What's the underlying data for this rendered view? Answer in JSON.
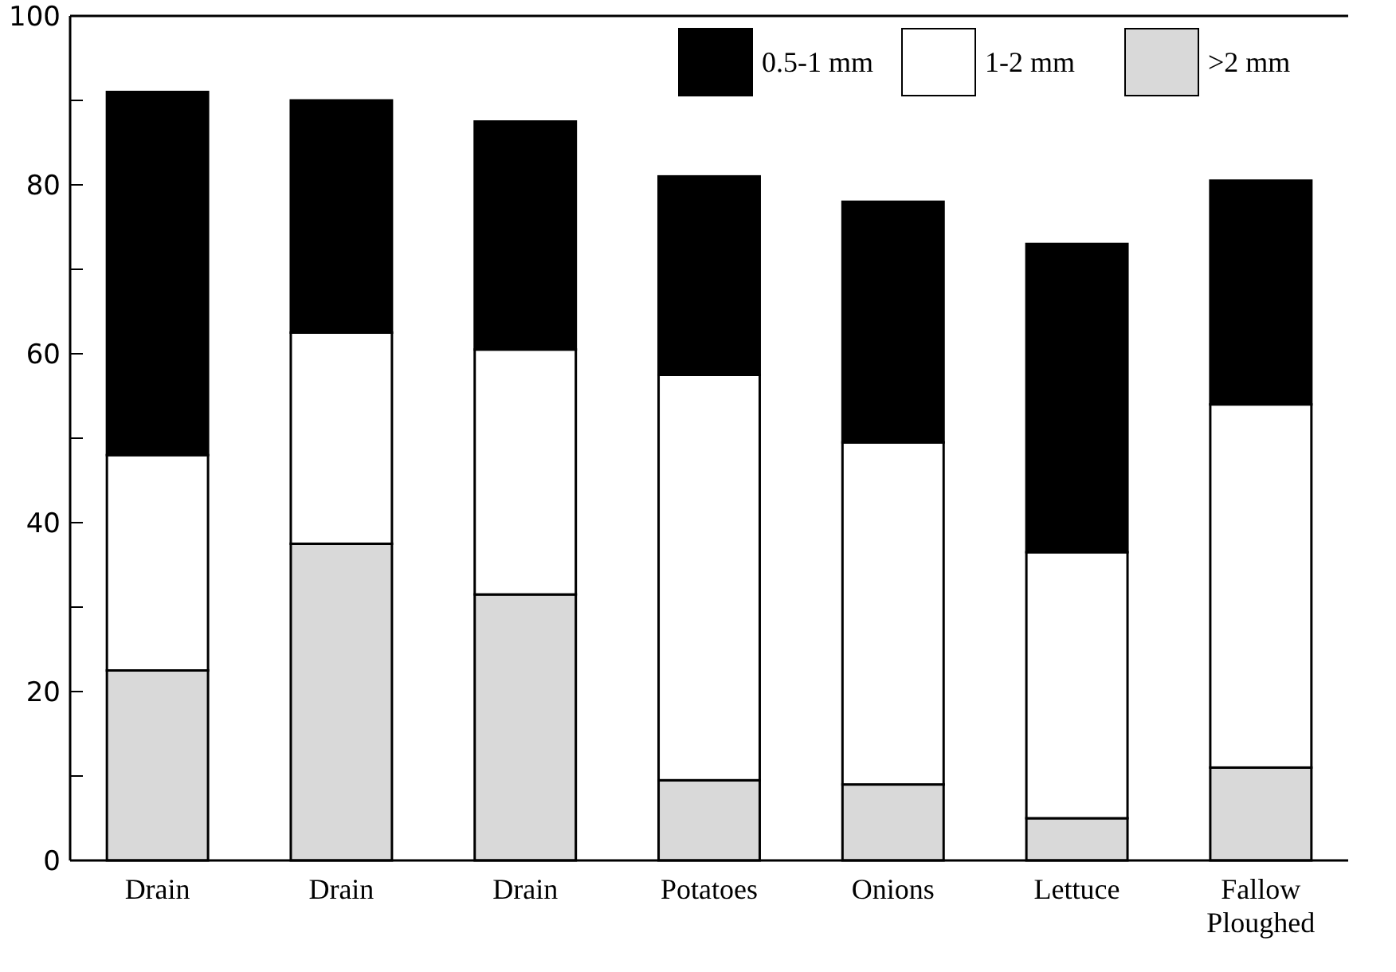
{
  "chart_data": {
    "type": "bar",
    "stacked": true,
    "categories": [
      "Drain",
      "Drain",
      "Drain",
      "Potatoes",
      "Onions",
      "Lettuce",
      "Fallow Ploughed"
    ],
    "series": [
      {
        "name": ">2 mm",
        "color": "#d9d9d9",
        "values": [
          22.5,
          37.5,
          31.5,
          9.5,
          9,
          5,
          11
        ]
      },
      {
        "name": "1-2 mm",
        "color": "#ffffff",
        "values": [
          25.5,
          25,
          29,
          48,
          40.5,
          31.5,
          43
        ]
      },
      {
        "name": "0.5-1 mm",
        "color": "#000000",
        "values": [
          43,
          27.5,
          27,
          23.5,
          28.5,
          36.5,
          26.5
        ]
      }
    ],
    "ylim": [
      0,
      100
    ],
    "yticks": [
      0,
      {
        "value": 10,
        "label": null
      },
      20,
      {
        "value": 30,
        "label": null
      },
      40,
      {
        "value": 50,
        "label": null
      },
      60,
      {
        "value": 70,
        "label": null
      },
      80,
      {
        "value": 90,
        "label": null
      },
      100
    ],
    "legend": "top right",
    "grid": false
  }
}
